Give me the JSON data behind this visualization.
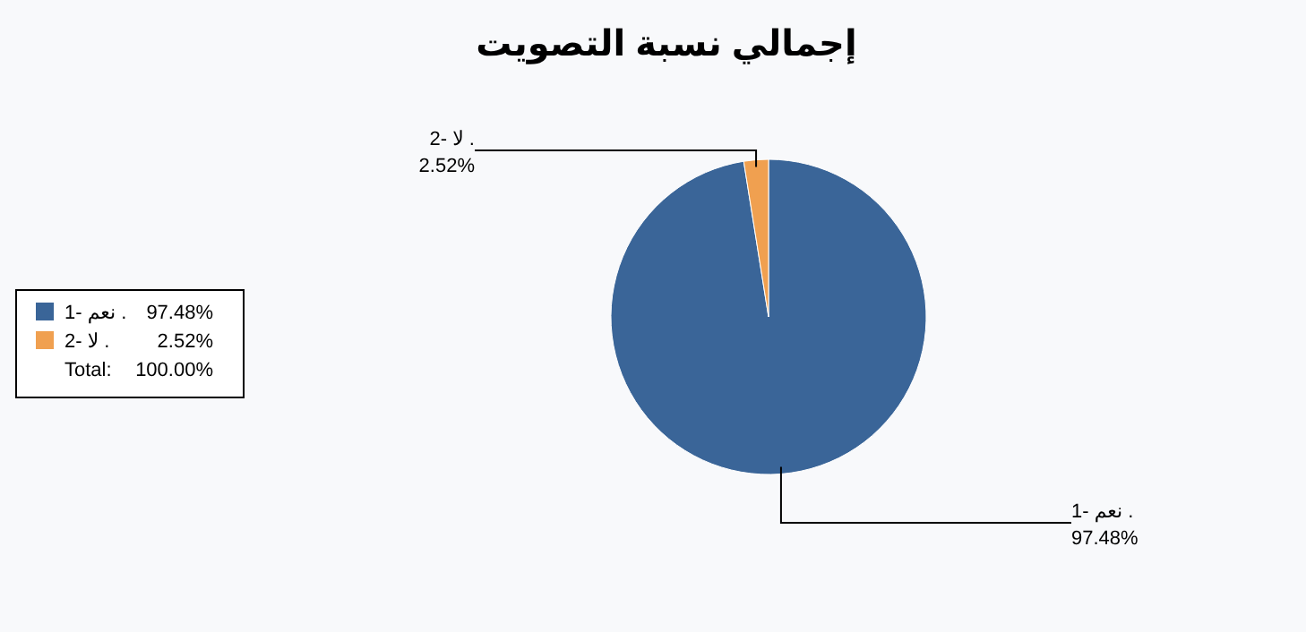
{
  "chart_data": {
    "type": "pie",
    "title": "إجمالي نسبة التصويت",
    "categories": [
      "1- نعم .",
      "2- لا ."
    ],
    "values": [
      97.48,
      2.52
    ],
    "colors": [
      "#3a6598",
      "#f0a050"
    ],
    "value_labels": [
      "97.48%",
      "2.52%"
    ],
    "legend": "left",
    "annotations": [
      "Total:",
      "100.00%"
    ]
  }
}
